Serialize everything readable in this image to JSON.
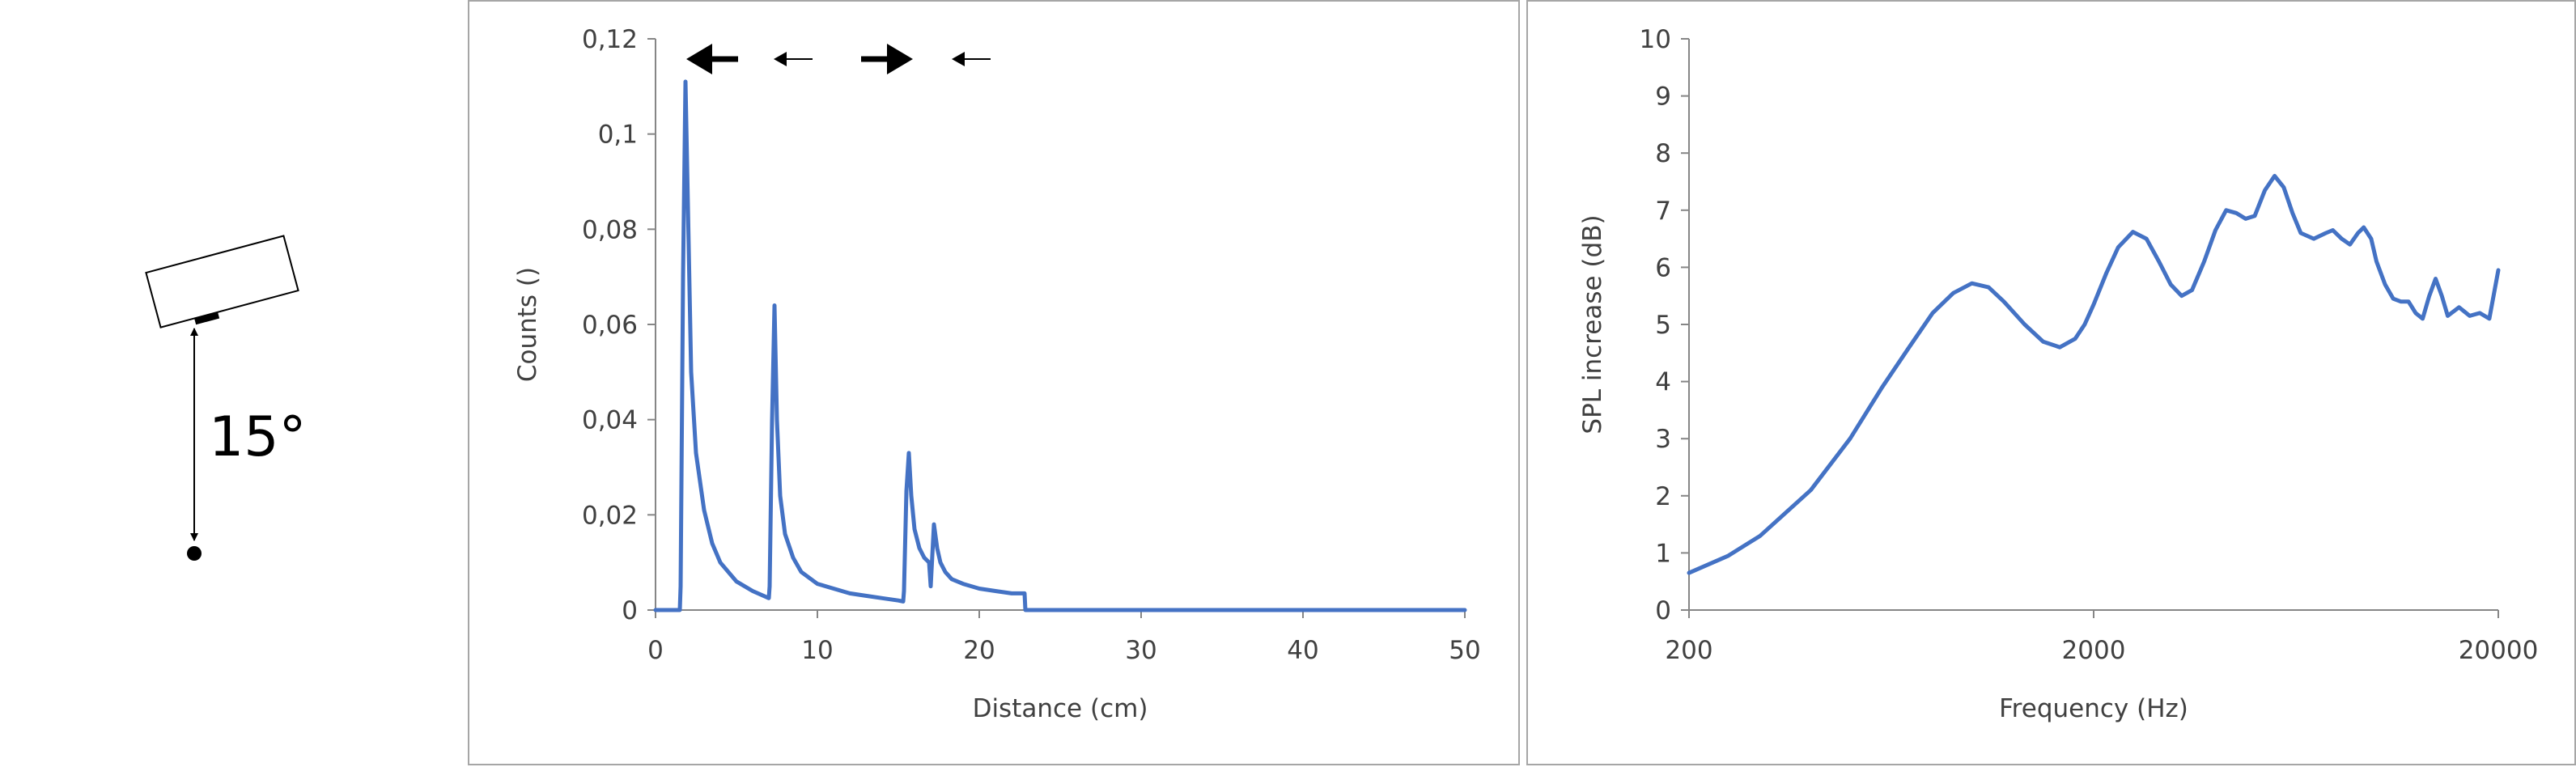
{
  "diagram": {
    "angle_label": "15°"
  },
  "chart_data": [
    {
      "type": "line",
      "title": "",
      "xlabel": "Distance (cm)",
      "ylabel": "Counts ()",
      "xlim": [
        0,
        50
      ],
      "ylim": [
        0,
        0.12
      ],
      "xticks": [
        0,
        10,
        20,
        30,
        40,
        50
      ],
      "xtick_labels": [
        "0",
        "10",
        "20",
        "30",
        "40",
        "50"
      ],
      "yticks": [
        0,
        0.02,
        0.04,
        0.06,
        0.08,
        0.1,
        0.12
      ],
      "ytick_labels": [
        "0",
        "0,02",
        "0,04",
        "0,06",
        "0,08",
        "0,1",
        "0,12"
      ],
      "grid": false,
      "line_color": "#4472c4",
      "series": [
        {
          "x": [
            0,
            1.5,
            1.55,
            1.7,
            1.85,
            2.0,
            2.2,
            2.5,
            3.0,
            3.5,
            4.0,
            5.0,
            6.0,
            7.0,
            7.05,
            7.2,
            7.35,
            7.5,
            7.7,
            8.0,
            8.5,
            9.0,
            10.0,
            11.0,
            12.0,
            13.0,
            14.0,
            15.0,
            15.3,
            15.35,
            15.5,
            15.65,
            15.8,
            16.0,
            16.3,
            16.6,
            16.9,
            17.0,
            17.2,
            17.4,
            17.6,
            17.9,
            18.3,
            19.0,
            20.0,
            21.0,
            22.0,
            22.8,
            22.85,
            23.0,
            30.0,
            40.0,
            50.0
          ],
          "y": [
            0,
            0,
            0.005,
            0.07,
            0.111,
            0.085,
            0.05,
            0.033,
            0.021,
            0.014,
            0.01,
            0.006,
            0.004,
            0.0025,
            0.005,
            0.04,
            0.064,
            0.04,
            0.024,
            0.016,
            0.011,
            0.008,
            0.0055,
            0.0045,
            0.0035,
            0.003,
            0.0025,
            0.002,
            0.0018,
            0.004,
            0.025,
            0.033,
            0.024,
            0.017,
            0.013,
            0.011,
            0.01,
            0.005,
            0.018,
            0.013,
            0.01,
            0.008,
            0.0065,
            0.0055,
            0.0045,
            0.004,
            0.0035,
            0.0035,
            0,
            0,
            0,
            0,
            0
          ]
        }
      ],
      "annotations": {
        "arrows": [
          {
            "direction": "left",
            "x": 3.5,
            "size": "large"
          },
          {
            "direction": "left",
            "x": 8.5,
            "size": "small"
          },
          {
            "direction": "right",
            "x": 14.3,
            "size": "large"
          },
          {
            "direction": "left",
            "x": 19.5,
            "size": "small"
          }
        ]
      }
    },
    {
      "type": "line",
      "title": "",
      "xlabel": "Frequency (Hz)",
      "ylabel": "SPL increase (dB)",
      "xscale": "log",
      "xlim": [
        200,
        20000
      ],
      "ylim": [
        0,
        10
      ],
      "xticks": [
        200,
        2000,
        20000
      ],
      "xtick_labels": [
        "200",
        "2000",
        "20000"
      ],
      "yticks": [
        0,
        1,
        2,
        3,
        4,
        5,
        6,
        7,
        8,
        9,
        10
      ],
      "ytick_labels": [
        "0",
        "1",
        "2",
        "3",
        "4",
        "5",
        "6",
        "7",
        "8",
        "9",
        "10"
      ],
      "grid": false,
      "line_color": "#4472c4",
      "series": [
        {
          "x": [
            200,
            250,
            300,
            400,
            500,
            600,
            700,
            800,
            900,
            1000,
            1100,
            1200,
            1350,
            1500,
            1650,
            1800,
            1900,
            2000,
            2150,
            2300,
            2500,
            2700,
            2900,
            3100,
            3300,
            3500,
            3750,
            4000,
            4250,
            4500,
            4750,
            5000,
            5300,
            5600,
            5900,
            6200,
            6500,
            7000,
            7500,
            7800,
            8200,
            8600,
            9000,
            9300,
            9700,
            10000,
            10500,
            11000,
            11500,
            12000,
            12500,
            13000,
            13500,
            14000,
            14500,
            15000,
            16000,
            17000,
            18000,
            19000,
            20000
          ],
          "y": [
            0.65,
            0.95,
            1.3,
            2.1,
            3.0,
            3.9,
            4.6,
            5.2,
            5.55,
            5.72,
            5.65,
            5.4,
            5.0,
            4.7,
            4.6,
            4.75,
            5.0,
            5.35,
            5.9,
            6.35,
            6.62,
            6.5,
            6.1,
            5.7,
            5.5,
            5.6,
            6.1,
            6.65,
            7.0,
            6.95,
            6.85,
            6.9,
            7.35,
            7.6,
            7.4,
            6.95,
            6.6,
            6.5,
            6.6,
            6.65,
            6.5,
            6.4,
            6.6,
            6.7,
            6.5,
            6.1,
            5.7,
            5.45,
            5.4,
            5.4,
            5.2,
            5.1,
            5.5,
            5.8,
            5.5,
            5.15,
            5.3,
            5.15,
            5.2,
            5.1,
            5.95
          ]
        }
      ]
    }
  ]
}
